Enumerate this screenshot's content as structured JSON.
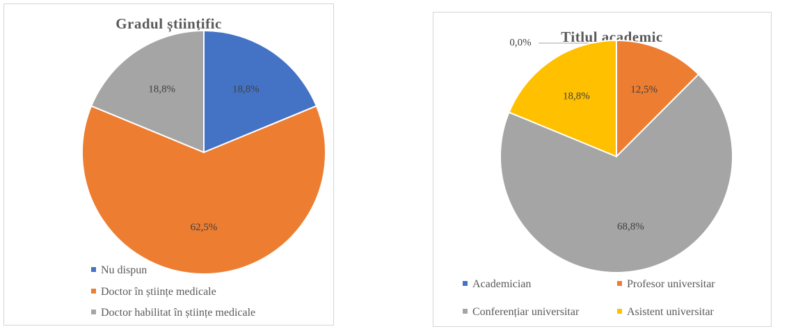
{
  "chart_data": [
    {
      "type": "pie",
      "title": "Gradul științific",
      "slices": [
        {
          "name": "Nu dispun",
          "value": 18.8,
          "label": "18,8%",
          "color": "#4472C4"
        },
        {
          "name": "Doctor în științe medicale",
          "value": 62.5,
          "label": "62,5%",
          "color": "#ED7D31"
        },
        {
          "name": "Doctor habilitat  în științe medicale",
          "value": 18.8,
          "label": "18,8%",
          "color": "#A5A5A5"
        }
      ],
      "legend_position": "bottom"
    },
    {
      "type": "pie",
      "title": "Titlul academic",
      "slices": [
        {
          "name": "Academician",
          "value": 0.0,
          "label": "0,0%",
          "color": "#4472C4"
        },
        {
          "name": "Profesor universitar",
          "value": 12.5,
          "label": "12,5%",
          "color": "#ED7D31"
        },
        {
          "name": "Conferențiar universitar",
          "value": 68.8,
          "label": "68,8%",
          "color": "#A5A5A5"
        },
        {
          "name": "Asistent universitar",
          "value": 18.8,
          "label": "18,8%",
          "color": "#FFC000"
        }
      ],
      "legend_position": "bottom"
    }
  ]
}
